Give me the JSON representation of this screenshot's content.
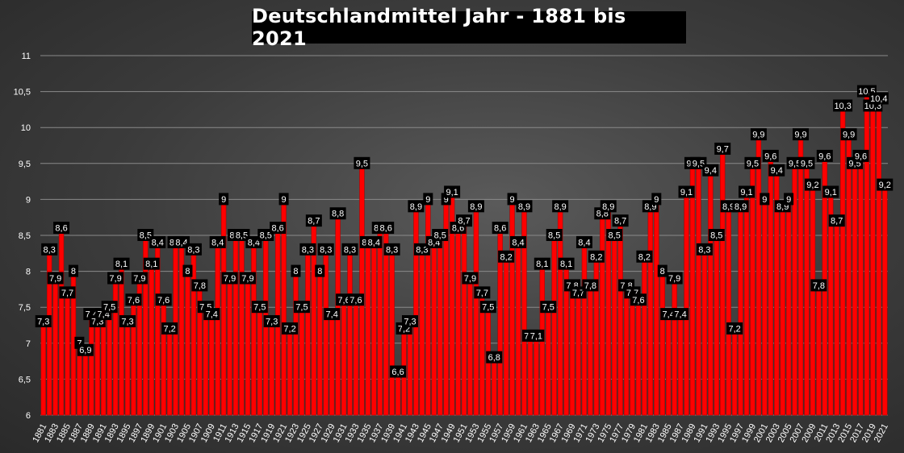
{
  "chart_data": {
    "type": "bar",
    "title": "Deutschlandmittel Jahr - 1881 bis 2021",
    "xlabel": "",
    "ylabel": "",
    "ylim": [
      6,
      11
    ],
    "yticks": [
      "6",
      "6,5",
      "7",
      "7,5",
      "8",
      "8,5",
      "9",
      "9,5",
      "10",
      "10,5",
      "11"
    ],
    "grid": "horizontal",
    "legend": "none",
    "bar_color": "#ff0000",
    "label_bg": "#000000",
    "label_color": "#ffffff",
    "categories": [
      1881,
      1882,
      1883,
      1884,
      1885,
      1886,
      1887,
      1888,
      1889,
      1890,
      1891,
      1892,
      1893,
      1894,
      1895,
      1896,
      1897,
      1898,
      1899,
      1900,
      1901,
      1902,
      1903,
      1904,
      1905,
      1906,
      1907,
      1908,
      1909,
      1910,
      1911,
      1912,
      1913,
      1914,
      1915,
      1916,
      1917,
      1918,
      1919,
      1920,
      1921,
      1922,
      1923,
      1924,
      1925,
      1926,
      1927,
      1928,
      1929,
      1930,
      1931,
      1932,
      1933,
      1934,
      1935,
      1936,
      1937,
      1938,
      1939,
      1940,
      1941,
      1942,
      1943,
      1944,
      1945,
      1946,
      1947,
      1948,
      1949,
      1950,
      1951,
      1952,
      1953,
      1954,
      1955,
      1956,
      1957,
      1958,
      1959,
      1960,
      1961,
      1962,
      1963,
      1964,
      1965,
      1966,
      1967,
      1968,
      1969,
      1970,
      1971,
      1972,
      1973,
      1974,
      1975,
      1976,
      1977,
      1978,
      1979,
      1980,
      1981,
      1982,
      1983,
      1984,
      1985,
      1986,
      1987,
      1988,
      1989,
      1990,
      1991,
      1992,
      1993,
      1994,
      1995,
      1996,
      1997,
      1998,
      1999,
      2000,
      2001,
      2002,
      2003,
      2004,
      2005,
      2006,
      2007,
      2008,
      2009,
      2010,
      2011,
      2012,
      2013,
      2014,
      2015,
      2016,
      2017,
      2018,
      2019,
      2020,
      2021
    ],
    "values": [
      7.3,
      8.3,
      7.9,
      8.6,
      7.7,
      8.0,
      7.0,
      6.9,
      7.4,
      7.3,
      7.4,
      7.5,
      7.9,
      8.1,
      7.3,
      7.6,
      7.9,
      8.5,
      8.1,
      8.4,
      7.6,
      7.2,
      8.4,
      8.4,
      8.0,
      8.3,
      7.8,
      7.5,
      7.4,
      8.4,
      9.0,
      7.9,
      8.5,
      8.5,
      7.9,
      8.4,
      7.5,
      8.5,
      7.3,
      8.6,
      9.0,
      7.2,
      8.0,
      7.5,
      8.3,
      8.7,
      8.0,
      8.3,
      7.4,
      8.8,
      7.6,
      8.3,
      7.6,
      9.5,
      8.4,
      8.4,
      8.6,
      8.6,
      8.3,
      6.6,
      7.2,
      7.3,
      8.9,
      8.3,
      9.0,
      8.4,
      8.5,
      9.0,
      9.1,
      8.6,
      8.7,
      7.9,
      8.9,
      7.7,
      7.5,
      6.8,
      8.6,
      8.2,
      9.0,
      8.4,
      8.9,
      7.1,
      7.1,
      8.1,
      7.5,
      8.5,
      8.9,
      8.1,
      7.8,
      7.7,
      8.4,
      7.8,
      8.2,
      8.8,
      8.9,
      8.5,
      8.7,
      7.8,
      7.7,
      7.6,
      8.2,
      8.9,
      9.0,
      8.0,
      7.4,
      7.9,
      7.4,
      9.1,
      9.5,
      9.5,
      8.3,
      9.4,
      8.5,
      9.7,
      8.9,
      7.2,
      8.9,
      9.1,
      9.5,
      9.9,
      9.0,
      9.6,
      9.4,
      8.9,
      9.0,
      9.5,
      9.9,
      9.5,
      9.2,
      7.8,
      9.6,
      9.1,
      8.7,
      10.3,
      9.9,
      9.5,
      9.6,
      10.5,
      10.3,
      10.4,
      9.2
    ],
    "data_labels": [
      "7,3",
      "8,3",
      "7,9",
      "8,6",
      "7,7",
      "8",
      "7",
      "6,9",
      "7,4",
      "7,3",
      "7,4",
      "7,5",
      "7,9",
      "8,1",
      "7,3",
      "7,6",
      "7,9",
      "8,5",
      "8,1",
      "8,4",
      "7,6",
      "7,2",
      "8,4",
      "8,4",
      "8",
      "8,3",
      "7,8",
      "7,5",
      "7,4",
      "8,4",
      "9",
      "7,9",
      "8,5",
      "8,5",
      "7,9",
      "8,4",
      "7,5",
      "8,5",
      "7,3",
      "8,6",
      "9",
      "7,2",
      "8",
      "7,5",
      "8,3",
      "8,7",
      "8",
      "8,3",
      "7,4",
      "8,8",
      "7,6",
      "8,3",
      "7,6",
      "9,5",
      "8,4",
      "8,4",
      "8,6",
      "8,6",
      "8,3",
      "6,6",
      "7,2",
      "7,3",
      "8,9",
      "8,3",
      "9",
      "8,4",
      "8,5",
      "9",
      "9,1",
      "8,6",
      "8,7",
      "7,9",
      "8,9",
      "7,7",
      "7,5",
      "6,8",
      "8,6",
      "8,2",
      "9",
      "8,4",
      "8,9",
      "7,1",
      "7,1",
      "8,1",
      "7,5",
      "8,5",
      "8,9",
      "8,1",
      "7,8",
      "7,7",
      "8,4",
      "7,8",
      "8,2",
      "8,8",
      "8,9",
      "8,5",
      "8,7",
      "7,8",
      "7,7",
      "7,6",
      "8,2",
      "8,9",
      "9",
      "8",
      "7,4",
      "7,9",
      "7,4",
      "9,1",
      "9,5",
      "9,5",
      "8,3",
      "9,4",
      "8,5",
      "9,7",
      "8,9",
      "7,2",
      "8,9",
      "9,1",
      "9,5",
      "9,9",
      "9",
      "9,6",
      "9,4",
      "8,9",
      "9",
      "9,5",
      "9,9",
      "9,5",
      "9,2",
      "7,8",
      "9,6",
      "9,1",
      "8,7",
      "10,3",
      "9,9",
      "9,5",
      "9,6",
      "10,5",
      "10,3",
      "10,4",
      "9,2"
    ]
  }
}
